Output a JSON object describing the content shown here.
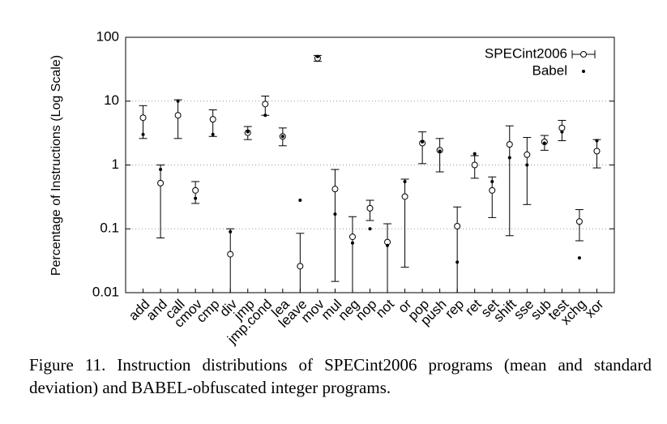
{
  "chart_data": {
    "type": "errorbar",
    "y_label": "Percentage of Instructions (Log Scale)",
    "categories": [
      "add",
      "and",
      "call",
      "cmov",
      "cmp",
      "div",
      "jmp",
      "jmp.cond",
      "lea",
      "leave",
      "mov",
      "mul",
      "neg",
      "nop",
      "not",
      "or",
      "pop",
      "push",
      "rep",
      "ret",
      "set",
      "shift",
      "sse",
      "sub",
      "test",
      "xchg",
      "xor"
    ],
    "series": [
      {
        "name": "SPECint2006",
        "color": "#000000",
        "values": [
          5.5,
          0.52,
          6,
          0.4,
          5.2,
          0.04,
          3.2,
          9,
          2.8,
          0.026,
          47,
          0.42,
          0.075,
          0.21,
          0.062,
          0.32,
          2.2,
          1.7,
          0.11,
          1,
          0.4,
          2.1,
          1.45,
          2.3,
          3.8,
          0.13,
          1.65
        ],
        "low": [
          2.6,
          0.072,
          2.6,
          0.25,
          2.8,
          0.01,
          2.5,
          6,
          2,
          0.01,
          42,
          0.015,
          0.01,
          0.135,
          0.01,
          0.025,
          1.05,
          0.78,
          0.01,
          0.62,
          0.15,
          0.078,
          0.24,
          1.7,
          2.4,
          0.065,
          0.9
        ],
        "high": [
          8.5,
          1,
          10.5,
          0.55,
          7.3,
          0.1,
          4,
          12,
          3.8,
          0.085,
          52,
          0.85,
          0.155,
          0.28,
          0.12,
          0.6,
          3.3,
          2.6,
          0.22,
          1.4,
          0.65,
          4.1,
          2.7,
          2.9,
          5,
          0.2,
          2.5
        ]
      },
      {
        "name": "Babel",
        "color": "#000000",
        "values": [
          3,
          0.85,
          10,
          0.3,
          3,
          0.09,
          3.3,
          6,
          2.8,
          0.28,
          50,
          0.17,
          0.06,
          0.1,
          0.055,
          0.55,
          2.3,
          1.65,
          0.03,
          1.5,
          0.55,
          1.3,
          1,
          2.2,
          3.3,
          0.035,
          2.4
        ]
      }
    ],
    "ylim": [
      0.01,
      100
    ],
    "yticks": [
      0.01,
      0.1,
      1,
      10,
      100
    ],
    "log_scale": true,
    "grid": true,
    "legend": "upper right",
    "caption": "Figure 11. Instruction distributions of SPECint2006 programs (mean and standard deviation) and BABEL-obfuscated integer programs."
  }
}
